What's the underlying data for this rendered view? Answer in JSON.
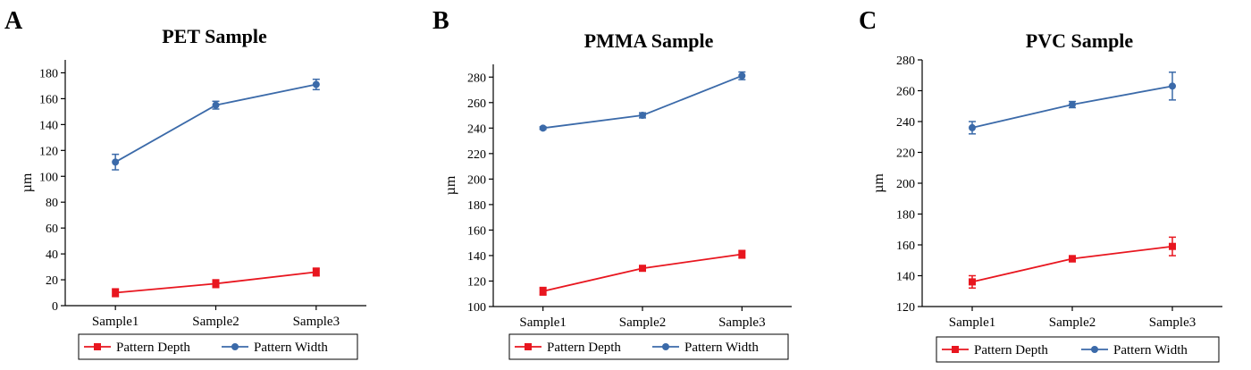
{
  "chart_data": [
    {
      "panel_label": "A",
      "type": "line",
      "title": "PET Sample",
      "xlabel": "",
      "ylabel": "µm",
      "categories": [
        "Sample1",
        "Sample2",
        "Sample3"
      ],
      "ylim": [
        0,
        190
      ],
      "yticks": [
        0,
        20,
        40,
        60,
        80,
        100,
        120,
        140,
        160,
        180
      ],
      "ytick_labels": [
        "0",
        "20",
        "40",
        "60",
        "80",
        "100",
        "120",
        "140",
        "160",
        "180"
      ],
      "legend": [
        "Pattern Depth",
        "Pattern Width"
      ],
      "legend_position": "bottom",
      "series": [
        {
          "name": "Pattern Depth",
          "color": "#e8161f",
          "marker": "square",
          "values": [
            10,
            17,
            26
          ],
          "errors": [
            3,
            3,
            3
          ]
        },
        {
          "name": "Pattern Width",
          "color": "#3b6aa9",
          "marker": "circle",
          "values": [
            111,
            155,
            171
          ],
          "errors": [
            6,
            3,
            4
          ]
        }
      ]
    },
    {
      "panel_label": "B",
      "type": "line",
      "title": "PMMA Sample",
      "xlabel": "",
      "ylabel": "µm",
      "categories": [
        "Sample1",
        "Sample2",
        "Sample3"
      ],
      "ylim": [
        100,
        290
      ],
      "yticks": [
        100,
        120,
        140,
        160,
        180,
        200,
        220,
        240,
        260,
        280
      ],
      "ytick_labels": [
        "100",
        "120",
        "140",
        "160",
        "180",
        "200",
        "220",
        "240",
        "260",
        "280"
      ],
      "legend": [
        "Pattern Depth",
        "Pattern Width"
      ],
      "legend_position": "bottom",
      "series": [
        {
          "name": "Pattern Depth",
          "color": "#e8161f",
          "marker": "square",
          "values": [
            112,
            130,
            141
          ],
          "errors": [
            3,
            1,
            3
          ]
        },
        {
          "name": "Pattern Width",
          "color": "#3b6aa9",
          "marker": "circle",
          "values": [
            240,
            250,
            281
          ],
          "errors": [
            1,
            2,
            3
          ]
        }
      ]
    },
    {
      "panel_label": "C",
      "type": "line",
      "title": "PVC Sample",
      "xlabel": "",
      "ylabel": "µm",
      "categories": [
        "Sample1",
        "Sample2",
        "Sample3"
      ],
      "ylim": [
        120,
        280
      ],
      "yticks": [
        120,
        140,
        160,
        180,
        200,
        220,
        240,
        260,
        280
      ],
      "ytick_labels": [
        "120",
        "140",
        "160",
        "180",
        "200",
        "220",
        "240",
        "260",
        "280"
      ],
      "legend": [
        "Pattern Depth",
        "Pattern Width"
      ],
      "legend_position": "bottom",
      "series": [
        {
          "name": "Pattern Depth",
          "color": "#e8161f",
          "marker": "square",
          "values": [
            136,
            151,
            159
          ],
          "errors": [
            4,
            2,
            6
          ]
        },
        {
          "name": "Pattern Width",
          "color": "#3b6aa9",
          "marker": "circle",
          "values": [
            236,
            251,
            263
          ],
          "errors": [
            4,
            2,
            9
          ]
        }
      ]
    }
  ]
}
